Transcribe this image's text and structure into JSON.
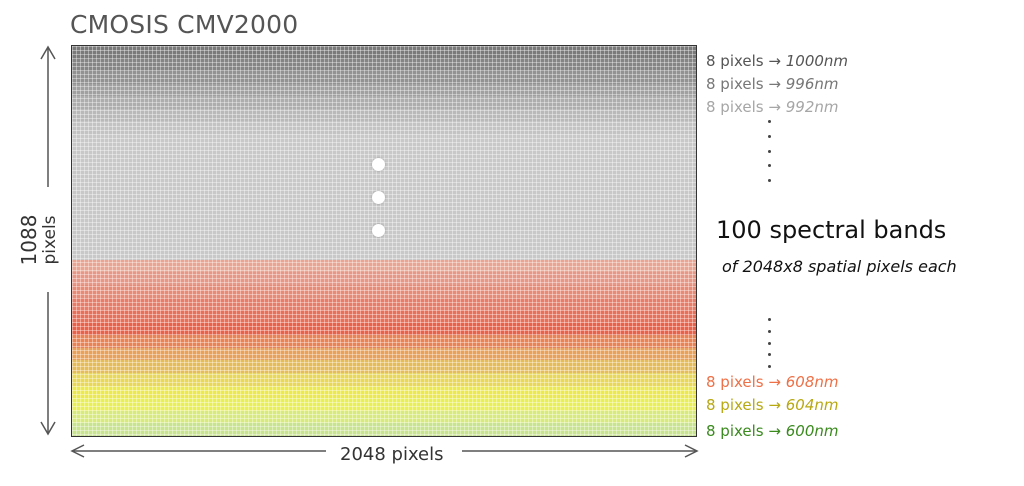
{
  "title": "CMOSIS CMV2000",
  "width_label": "2048 pixels",
  "height_label": {
    "number": "1088",
    "unit": "pixels"
  },
  "band_labels": [
    {
      "pixels": "8 pixels →",
      "wavelength": "1000nm",
      "color": "#555555"
    },
    {
      "pixels": "8 pixels →",
      "wavelength": "996nm",
      "color": "#777777"
    },
    {
      "pixels": "8 pixels →",
      "wavelength": "992nm",
      "color": "#a6a6a6"
    },
    {
      "pixels": "8 pixels →",
      "wavelength": "608nm",
      "color": "#ee7046"
    },
    {
      "pixels": "8 pixels →",
      "wavelength": "604nm",
      "color": "#b8a812"
    },
    {
      "pixels": "8 pixels →",
      "wavelength": "600nm",
      "color": "#3a8a1e"
    }
  ],
  "summary": {
    "heading": "100 spectral bands",
    "subheading": "of 2048x8 spatial pixels each"
  },
  "sensor_band_colors": [
    "#7a7a7a",
    "#858585",
    "#929292",
    "#a0a0a0",
    "#adadad",
    "#b9b9b9",
    "#c3c3c3",
    "#c8c8c8",
    "#c8c8c8",
    "#c8c8c8",
    "#c8c8c8",
    "#c8c8c8",
    "#c8c8c8",
    "#c8c8c8",
    "#c8c8c8",
    "#c8c8c8",
    "#c8c8c8",
    "#e9a593",
    "#e79786",
    "#e68b77",
    "#e77d68",
    "#e7705a",
    "#e8614b",
    "#e98254",
    "#e9a058",
    "#e6bb59",
    "#e9d757",
    "#ece950",
    "#e8ef58",
    "#d8ea7e",
    "#c8e48e"
  ]
}
